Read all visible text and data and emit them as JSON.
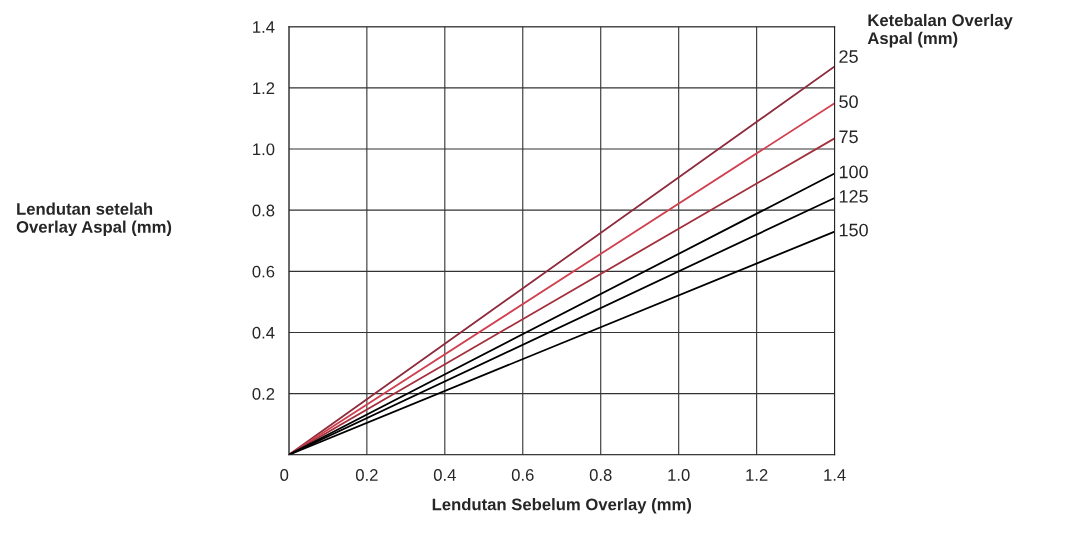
{
  "chart_data": {
    "type": "line",
    "xlabel": "Lendutan Sebelum Overlay (mm)",
    "ylabel": "Lendutan setelah\nOverlay Aspal (mm)",
    "legend_title": "Ketebalan Overlay\nAspal (mm)",
    "x": [
      0,
      1.4
    ],
    "series": [
      {
        "name": "25",
        "color": "#8e2b3c",
        "values": [
          0,
          1.27
        ]
      },
      {
        "name": "50",
        "color": "#d0404f",
        "values": [
          0,
          1.15
        ]
      },
      {
        "name": "75",
        "color": "#a3303c",
        "values": [
          0,
          1.035
        ]
      },
      {
        "name": "100",
        "color": "#000000",
        "values": [
          0,
          0.92
        ]
      },
      {
        "name": "125",
        "color": "#000000",
        "values": [
          0,
          0.84
        ]
      },
      {
        "name": "150",
        "color": "#000000",
        "values": [
          0,
          0.73
        ]
      }
    ],
    "xlim": [
      0,
      1.4
    ],
    "ylim": [
      0,
      1.4
    ],
    "xticks": [
      0,
      0.2,
      0.4,
      0.6,
      0.8,
      {
        "value": 1.0,
        "label": "1.0"
      },
      1.2,
      1.4
    ],
    "yticks": [
      {
        "value": 0,
        "label": null
      },
      0.2,
      0.4,
      0.6,
      0.8,
      {
        "value": 1.0,
        "label": "1.0"
      },
      1.2,
      1.4
    ],
    "grid": true,
    "marker": "none",
    "line_style": "solid"
  }
}
